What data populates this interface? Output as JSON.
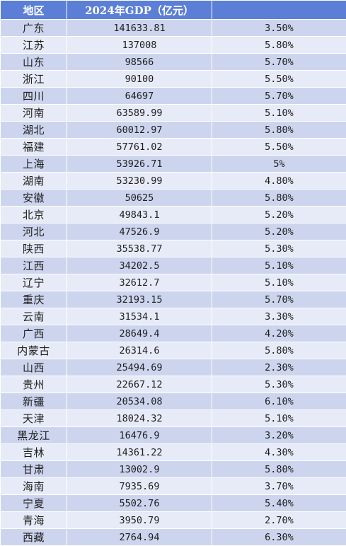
{
  "table": {
    "headers": [
      "地区",
      "2024年GDP（亿元）",
      ""
    ],
    "rows": [
      [
        "广东",
        "141633.81",
        "3.50%"
      ],
      [
        "江苏",
        "137008",
        "5.80%"
      ],
      [
        "山东",
        "98566",
        "5.70%"
      ],
      [
        "浙江",
        "90100",
        "5.50%"
      ],
      [
        "四川",
        "64697",
        "5.70%"
      ],
      [
        "河南",
        "63589.99",
        "5.10%"
      ],
      [
        "湖北",
        "60012.97",
        "5.80%"
      ],
      [
        "福建",
        "57761.02",
        "5.50%"
      ],
      [
        "上海",
        "53926.71",
        "5%"
      ],
      [
        "湖南",
        "53230.99",
        "4.80%"
      ],
      [
        "安徽",
        "50625",
        "5.80%"
      ],
      [
        "北京",
        "49843.1",
        "5.20%"
      ],
      [
        "河北",
        "47526.9",
        "5.20%"
      ],
      [
        "陕西",
        "35538.77",
        "5.30%"
      ],
      [
        "江西",
        "34202.5",
        "5.10%"
      ],
      [
        "辽宁",
        "32612.7",
        "5.10%"
      ],
      [
        "重庆",
        "32193.15",
        "5.70%"
      ],
      [
        "云南",
        "31534.1",
        "3.30%"
      ],
      [
        "广西",
        "28649.4",
        "4.20%"
      ],
      [
        "内蒙古",
        "26314.6",
        "5.80%"
      ],
      [
        "山西",
        "25494.69",
        "2.30%"
      ],
      [
        "贵州",
        "22667.12",
        "5.30%"
      ],
      [
        "新疆",
        "20534.08",
        "6.10%"
      ],
      [
        "天津",
        "18024.32",
        "5.10%"
      ],
      [
        "黑龙江",
        "16476.9",
        "3.20%"
      ],
      [
        "吉林",
        "14361.22",
        "4.30%"
      ],
      [
        "甘肃",
        "13002.9",
        "5.80%"
      ],
      [
        "海南",
        "7935.69",
        "3.70%"
      ],
      [
        "宁夏",
        "5502.76",
        "5.40%"
      ],
      [
        "青海",
        "3950.79",
        "2.70%"
      ],
      [
        "西藏",
        "2764.94",
        "6.30%"
      ]
    ]
  }
}
